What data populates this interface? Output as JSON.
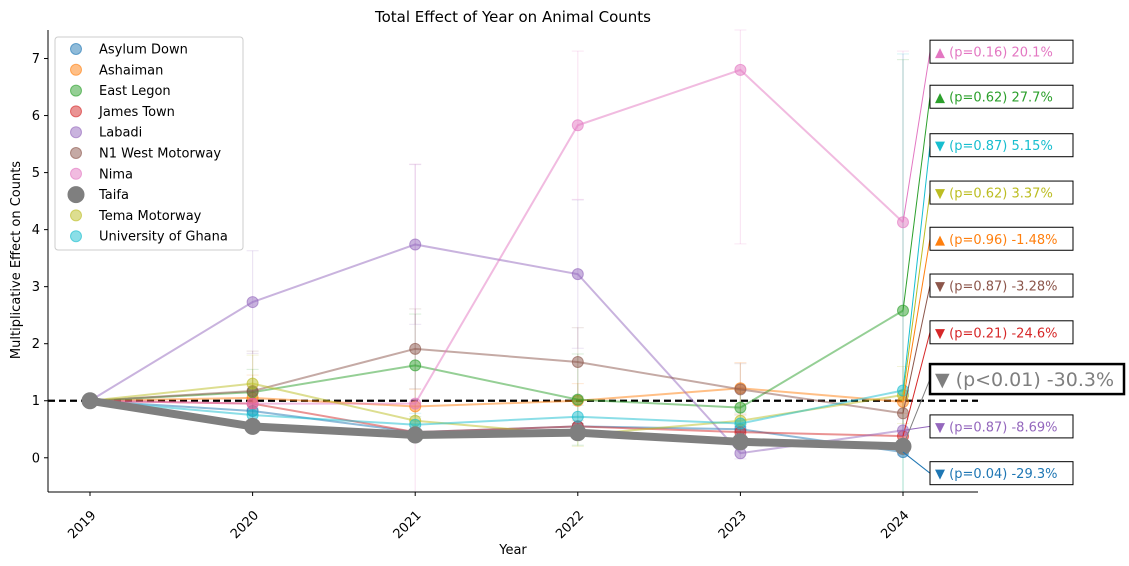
{
  "chart_data": {
    "type": "line",
    "title": "Total Effect of Year on Animal Counts",
    "xlabel": "Year",
    "ylabel": "Multiplicative Effect on Counts",
    "x": [
      "2019",
      "2020",
      "2021",
      "2022",
      "2023",
      "2024"
    ],
    "ylim": [
      -0.6,
      7.5
    ],
    "yticks": [
      0,
      1,
      2,
      3,
      4,
      5,
      6,
      7
    ],
    "reference_line": 1,
    "legend_position": "upper-left",
    "series": [
      {
        "name": "Asylum Down",
        "color": "#1f77b4",
        "values": [
          1,
          0.82,
          0.45,
          0.55,
          0.5,
          0.1
        ],
        "errors": [
          0,
          0.05,
          0.05,
          0.05,
          0.05,
          0.05
        ],
        "annotation": "▼ (p=0.04) -29.3%",
        "ann_y": -0.27
      },
      {
        "name": "Ashaiman",
        "color": "#ff7f0e",
        "values": [
          1,
          1.05,
          0.9,
          1.0,
          1.22,
          0.98
        ],
        "errors": [
          0,
          0.4,
          0.3,
          0.3,
          0.45,
          0.2
        ],
        "annotation": "▲ (p=0.96) -1.48%",
        "ann_y": 3.84
      },
      {
        "name": "East Legon",
        "color": "#2ca02c",
        "values": [
          1,
          1.15,
          1.62,
          1.02,
          0.88,
          2.58
        ],
        "errors": [
          0,
          0.4,
          0.9,
          0.8,
          0.3,
          4.4
        ],
        "annotation": "▲ (p=0.62) 27.7%",
        "ann_y": 6.33
      },
      {
        "name": "James Town",
        "color": "#d62728",
        "values": [
          1,
          0.95,
          0.45,
          0.55,
          0.45,
          0.38
        ],
        "errors": [
          0,
          0.1,
          0.1,
          0.1,
          0.1,
          0.1
        ],
        "annotation": "▼ (p=0.21) -24.6%",
        "ann_y": 2.2
      },
      {
        "name": "Labadi",
        "color": "#9467bd",
        "values": [
          1,
          2.73,
          3.74,
          3.22,
          0.08,
          0.48
        ],
        "errors": [
          0,
          0.9,
          1.4,
          1.3,
          0.1,
          0.2
        ],
        "annotation": "▼ (p=0.87) -8.69%",
        "ann_y": 0.55
      },
      {
        "name": "N1 West Motorway",
        "color": "#8c564b",
        "values": [
          1,
          1.17,
          1.91,
          1.68,
          1.2,
          0.78
        ],
        "errors": [
          0,
          0.7,
          0.7,
          0.6,
          0.45,
          0.3
        ],
        "annotation": "▼ (p=0.87) -3.28%",
        "ann_y": 3.02
      },
      {
        "name": "Nima",
        "color": "#e377c2",
        "values": [
          1,
          0.95,
          0.95,
          5.83,
          6.8,
          4.13
        ],
        "errors": [
          0,
          0.3,
          4.2,
          1.3,
          3.05,
          3.0
        ],
        "annotation": "▲ (p=0.16) 20.1%",
        "ann_y": 7.12
      },
      {
        "name": "Tema Motorway",
        "color": "#bcbd22",
        "values": [
          1,
          1.3,
          0.65,
          0.4,
          0.65,
          1.1
        ],
        "errors": [
          0,
          0.5,
          0.3,
          0.2,
          0.3,
          0.5
        ],
        "annotation": "▼ (p=0.62) 3.37%",
        "ann_y": 4.65
      },
      {
        "name": "University of Ghana",
        "color": "#17becf",
        "values": [
          1,
          0.75,
          0.58,
          0.72,
          0.6,
          1.18
        ],
        "errors": [
          0,
          0.2,
          0.2,
          0.2,
          0.2,
          5.9
        ],
        "annotation": "▼ (p=0.87) 5.15%",
        "ann_y": 5.48
      },
      {
        "name": "Taifa",
        "color": "#7f7f7f",
        "values": [
          1,
          0.55,
          0.4,
          0.44,
          0.28,
          0.2
        ],
        "errors": [
          0,
          0.05,
          0.05,
          0.05,
          0.05,
          0.05
        ],
        "annotation": "▼ (p<0.01) -30.3%",
        "ann_y": 1.38,
        "highlight": true
      }
    ],
    "legend_order": [
      "Asylum Down",
      "Ashaiman",
      "East Legon",
      "James Town",
      "Labadi",
      "N1 West Motorway",
      "Nima",
      "Taifa",
      "Tema Motorway",
      "University of Ghana"
    ]
  }
}
